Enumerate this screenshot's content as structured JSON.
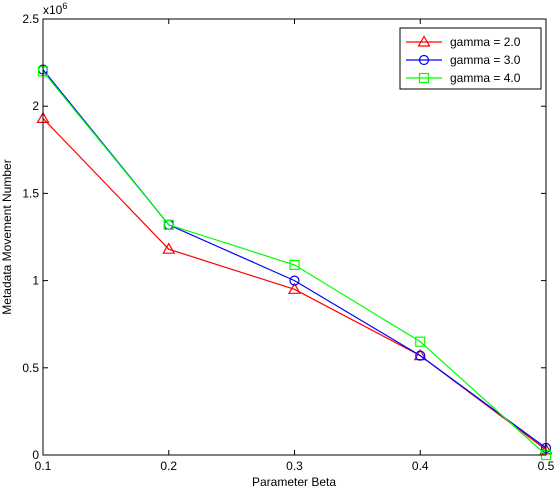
{
  "chart_data": {
    "type": "line",
    "title": "",
    "xlabel": "Parameter Beta",
    "ylabel": "Metadata Movement Number",
    "y_multiplier_label": "x10",
    "y_multiplier_exponent": "6",
    "xlim": [
      0.1,
      0.5
    ],
    "ylim": [
      0,
      2.5
    ],
    "x_ticks": [
      0.1,
      0.2,
      0.3,
      0.4,
      0.5
    ],
    "x_tick_labels": [
      "0.1",
      "0.2",
      "0.3",
      "0.4",
      "0.5"
    ],
    "y_ticks": [
      0,
      0.5,
      1,
      1.5,
      2,
      2.5
    ],
    "y_tick_labels": [
      "0",
      "0.5",
      "1",
      "1.5",
      "2",
      "2.5"
    ],
    "grid": false,
    "legend_position": "top-right",
    "x": [
      0.1,
      0.2,
      0.3,
      0.4,
      0.5
    ],
    "series": [
      {
        "name": "gamma = 2.0",
        "color": "#ff0000",
        "marker": "triangle",
        "values": [
          1.93,
          1.18,
          0.95,
          0.57,
          0.03
        ]
      },
      {
        "name": "gamma = 3.0",
        "color": "#0000ff",
        "marker": "circle",
        "values": [
          2.21,
          1.32,
          1.0,
          0.57,
          0.04
        ]
      },
      {
        "name": "gamma = 4.0",
        "color": "#00ff00",
        "marker": "square",
        "values": [
          2.2,
          1.32,
          1.09,
          0.65,
          0.0
        ]
      }
    ]
  }
}
